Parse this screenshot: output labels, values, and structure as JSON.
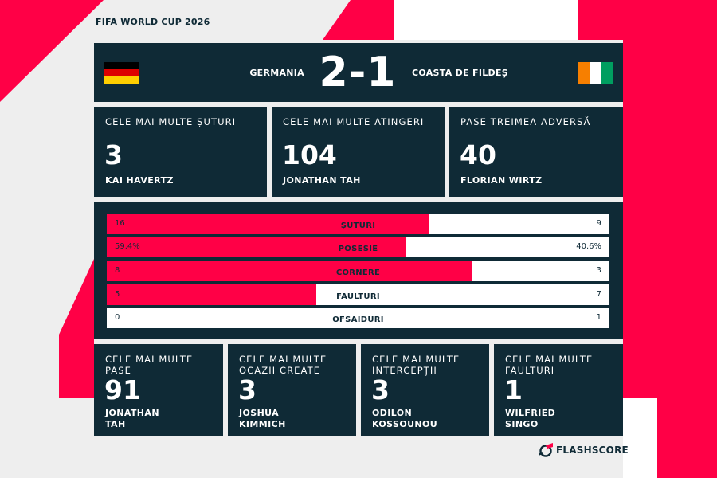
{
  "event": "FIFA WORLD CUP 2026",
  "match": {
    "home_team": "GERMANIA",
    "away_team": "COASTA DE FILDEȘ",
    "score": "2-1"
  },
  "top_cards": [
    {
      "label": "CELE MAI MULTE ȘUTURI",
      "value": "3",
      "player": "KAI HAVERTZ"
    },
    {
      "label": "CELE MAI MULTE ATINGERI",
      "value": "104",
      "player": "JONATHAN TAH"
    },
    {
      "label": "PASE TREIMEA ADVERSĂ",
      "value": "40",
      "player": "FLORIAN WIRTZ"
    }
  ],
  "bars": [
    {
      "name": "ȘUTURI",
      "home": "16",
      "away": "9",
      "home_share": 0.64
    },
    {
      "name": "POSESIE",
      "home": "59.4%",
      "away": "40.6%",
      "home_share": 0.594
    },
    {
      "name": "CORNERE",
      "home": "8",
      "away": "3",
      "home_share": 0.727
    },
    {
      "name": "FAULTURI",
      "home": "5",
      "away": "7",
      "home_share": 0.417
    },
    {
      "name": "OFSAIDURI",
      "home": "0",
      "away": "1",
      "home_share": 0.0
    }
  ],
  "bottom_cards": [
    {
      "label": [
        "CELE MAI MULTE PASE"
      ],
      "value": "91",
      "player": [
        "JONATHAN",
        "TAH"
      ]
    },
    {
      "label": [
        "CELE MAI MULTE",
        "OCAZII CREATE"
      ],
      "value": "3",
      "player": [
        "JOSHUA",
        "KIMMICH"
      ]
    },
    {
      "label": [
        "CELE MAI MULTE",
        "INTERCEPȚII"
      ],
      "value": "3",
      "player": [
        "ODILON",
        "KOSSOUNOU"
      ]
    },
    {
      "label": [
        "CELE MAI MULTE",
        "FAULTURI"
      ],
      "value": "1",
      "player": [
        "WILFRIED",
        "SINGO"
      ]
    }
  ],
  "brand": "FLASHSCORE",
  "colors": {
    "accent": "#ff0046",
    "panel": "#0f2a36",
    "background": "#eeeeee",
    "germany_flag": [
      "#000000",
      "#dd0000",
      "#ffce00"
    ],
    "ivory_coast_flag": [
      "#f77f00",
      "#ffffff",
      "#009e60"
    ]
  }
}
